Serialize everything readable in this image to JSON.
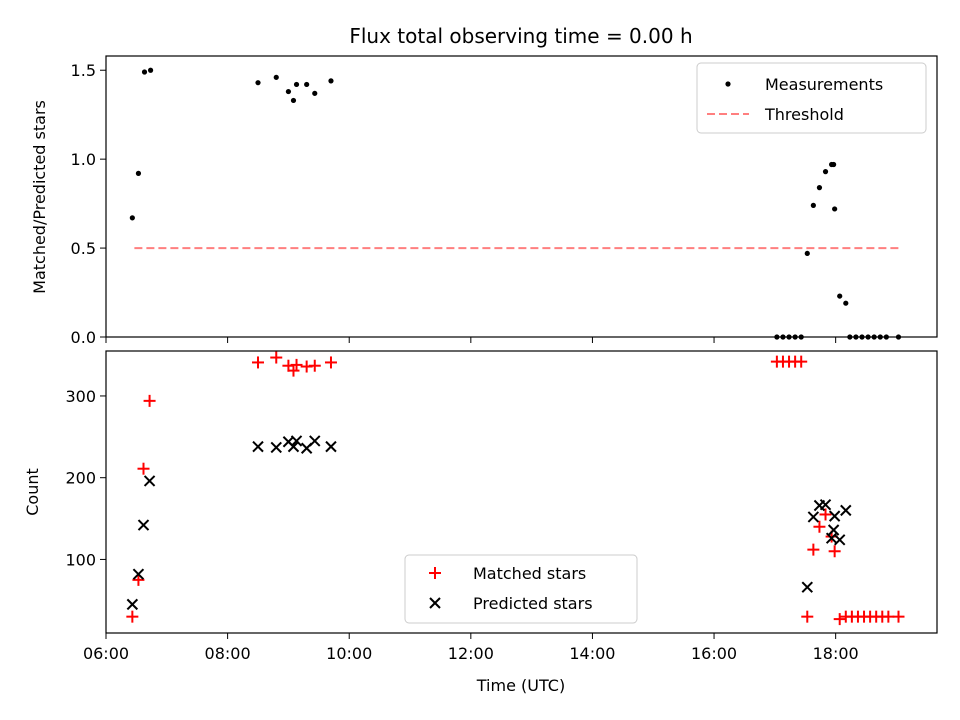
{
  "title": "Flux total observing time = 0.00 h",
  "colors": {
    "measurement": "#000000",
    "threshold": "#ff7f7f",
    "matched": "#ff0000",
    "predicted": "#000000"
  },
  "chart_data": [
    {
      "type": "scatter",
      "ylabel": "Matched/Predicted stars",
      "xlabel": "",
      "xlim": [
        "06:00",
        "19:40"
      ],
      "ylim": [
        0,
        1.58
      ],
      "yticks": [
        0.0,
        0.5,
        1.0,
        1.5
      ],
      "ytick_labels": [
        "0.0",
        "0.5",
        "1.0",
        "1.5"
      ],
      "legend": {
        "position": "top-right",
        "entries": [
          "Measurements",
          "Threshold"
        ]
      },
      "series": [
        {
          "name": "Measurements",
          "marker": "dot",
          "points": [
            [
              "06:26",
              0.67
            ],
            [
              "06:32",
              0.92
            ],
            [
              "06:38",
              1.49
            ],
            [
              "06:44",
              1.5
            ],
            [
              "08:30",
              1.43
            ],
            [
              "08:48",
              1.46
            ],
            [
              "09:00",
              1.38
            ],
            [
              "09:05",
              1.33
            ],
            [
              "09:08",
              1.42
            ],
            [
              "09:18",
              1.42
            ],
            [
              "09:26",
              1.37
            ],
            [
              "09:42",
              1.44
            ],
            [
              "17:02",
              0.0
            ],
            [
              "17:08",
              0.0
            ],
            [
              "17:14",
              0.0
            ],
            [
              "17:20",
              0.0
            ],
            [
              "17:26",
              0.0
            ],
            [
              "17:32",
              0.47
            ],
            [
              "17:38",
              0.74
            ],
            [
              "17:44",
              0.84
            ],
            [
              "17:50",
              0.93
            ],
            [
              "17:56",
              0.97
            ],
            [
              "17:58",
              0.97
            ],
            [
              "17:59",
              0.72
            ],
            [
              "18:04",
              0.23
            ],
            [
              "18:10",
              0.19
            ],
            [
              "18:14",
              0.0
            ],
            [
              "18:20",
              0.0
            ],
            [
              "18:26",
              0.0
            ],
            [
              "18:32",
              0.0
            ],
            [
              "18:38",
              0.0
            ],
            [
              "18:44",
              0.0
            ],
            [
              "18:50",
              0.0
            ],
            [
              "19:02",
              0.0
            ]
          ]
        },
        {
          "name": "Threshold",
          "line": "dashed",
          "x": [
            "06:28",
            "19:05"
          ],
          "y": [
            0.5,
            0.5
          ]
        }
      ]
    },
    {
      "type": "scatter",
      "ylabel": "Count",
      "xlabel": "Time (UTC)",
      "xlim": [
        "06:00",
        "19:40"
      ],
      "ylim": [
        10,
        355
      ],
      "yticks": [
        100,
        200,
        300
      ],
      "ytick_labels": [
        "100",
        "200",
        "300"
      ],
      "xticks": [
        "06:00",
        "08:00",
        "10:00",
        "12:00",
        "14:00",
        "16:00",
        "18:00"
      ],
      "xtick_labels": [
        "06:00",
        "08:00",
        "10:00",
        "12:00",
        "14:00",
        "16:00",
        "18:00"
      ],
      "legend": {
        "position": "lower-center",
        "entries": [
          "Matched stars",
          "Predicted stars"
        ]
      },
      "series": [
        {
          "name": "Matched stars",
          "marker": "plus",
          "points": [
            [
              "06:26",
              30
            ],
            [
              "06:32",
              75
            ],
            [
              "06:37",
              211
            ],
            [
              "06:43",
              294
            ],
            [
              "08:30",
              341
            ],
            [
              "08:48",
              347
            ],
            [
              "09:00",
              337
            ],
            [
              "09:05",
              331
            ],
            [
              "09:08",
              338
            ],
            [
              "09:18",
              336
            ],
            [
              "09:26",
              337
            ],
            [
              "09:42",
              341
            ],
            [
              "17:02",
              342
            ],
            [
              "17:08",
              342
            ],
            [
              "17:14",
              342
            ],
            [
              "17:20",
              342
            ],
            [
              "17:26",
              342
            ],
            [
              "17:32",
              30
            ],
            [
              "17:38",
              112
            ],
            [
              "17:44",
              140
            ],
            [
              "17:50",
              155
            ],
            [
              "17:56",
              128
            ],
            [
              "17:59",
              110
            ],
            [
              "18:04",
              27
            ],
            [
              "18:10",
              30
            ],
            [
              "18:16",
              30
            ],
            [
              "18:22",
              30
            ],
            [
              "18:28",
              30
            ],
            [
              "18:34",
              30
            ],
            [
              "18:40",
              30
            ],
            [
              "18:46",
              30
            ],
            [
              "18:52",
              30
            ],
            [
              "19:02",
              30
            ]
          ]
        },
        {
          "name": "Predicted stars",
          "marker": "x",
          "points": [
            [
              "06:26",
              45
            ],
            [
              "06:32",
              82
            ],
            [
              "06:37",
              142
            ],
            [
              "06:43",
              196
            ],
            [
              "08:30",
              238
            ],
            [
              "08:48",
              237
            ],
            [
              "09:00",
              244
            ],
            [
              "09:05",
              238
            ],
            [
              "09:08",
              245
            ],
            [
              "09:18",
              236
            ],
            [
              "09:26",
              245
            ],
            [
              "09:42",
              238
            ],
            [
              "17:32",
              66
            ],
            [
              "17:38",
              152
            ],
            [
              "17:44",
              166
            ],
            [
              "17:50",
              167
            ],
            [
              "17:56",
              126
            ],
            [
              "17:58",
              136
            ],
            [
              "17:59",
              153
            ],
            [
              "18:04",
              124
            ],
            [
              "18:10",
              160
            ]
          ]
        }
      ]
    }
  ]
}
